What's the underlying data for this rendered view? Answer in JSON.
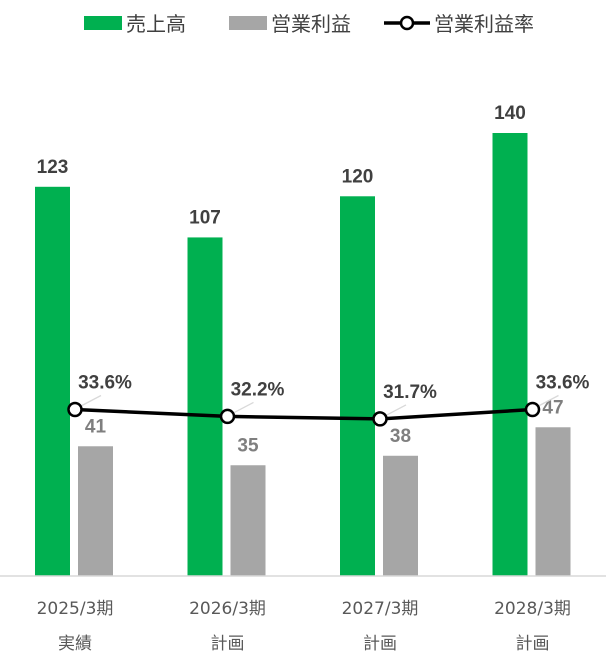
{
  "chart_data": {
    "type": "bar",
    "categories": [
      {
        "line1": "2025/3期",
        "line2": "実績"
      },
      {
        "line1": "2026/3期",
        "line2": "計画"
      },
      {
        "line1": "2027/3期",
        "line2": "計画"
      },
      {
        "line1": "2028/3期",
        "line2": "計画"
      }
    ],
    "series": [
      {
        "name": "売上高",
        "type": "bar",
        "color": "#00b050",
        "values": [
          123,
          107,
          120,
          140
        ],
        "labels": [
          "123",
          "107",
          "120",
          "140"
        ]
      },
      {
        "name": "営業利益",
        "type": "bar",
        "color": "#a6a6a6",
        "values": [
          41,
          35,
          38,
          47
        ],
        "labels": [
          "41",
          "35",
          "38",
          "47"
        ]
      },
      {
        "name": "営業利益率",
        "type": "line",
        "color": "#000000",
        "values": [
          33.6,
          32.2,
          31.7,
          33.6
        ],
        "labels": [
          "33.6%",
          "32.2%",
          "31.7%",
          "33.6%"
        ]
      }
    ],
    "ylim": [
      0,
      140
    ],
    "line_ylim": [
      0,
      90
    ],
    "legend_position": "top",
    "grid": false,
    "colors": {
      "value_label_dark": "#404040",
      "value_label_gray": "#7f7f7f",
      "axis": "#d9d9d9"
    }
  }
}
